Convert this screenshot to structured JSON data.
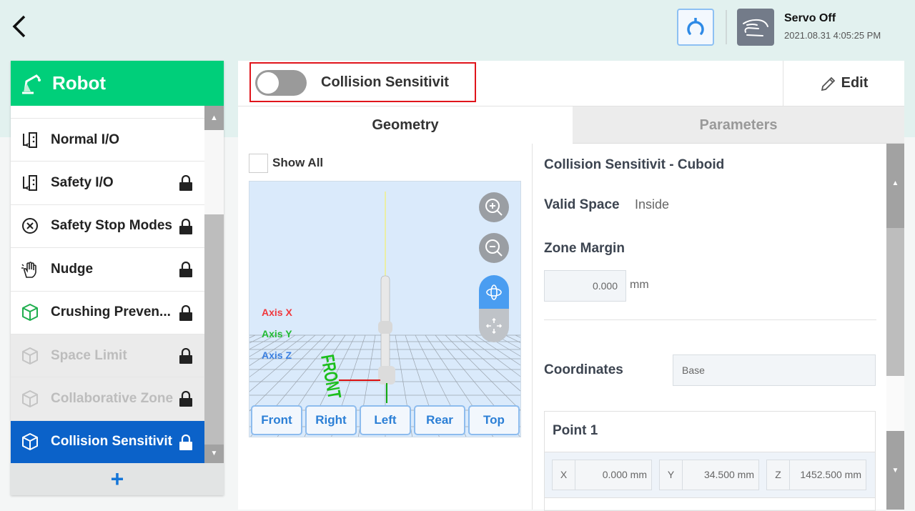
{
  "header": {
    "back_icon": "chevron-left-icon",
    "home_icon": "robot-home-icon",
    "servo_icon": "hand-icon",
    "servo_status": "Servo Off",
    "datetime": "2021.08.31 4:05:25 PM"
  },
  "sidebar": {
    "title": "Robot",
    "add_label": "+",
    "items": [
      {
        "label": "Normal I/O",
        "icon": "io-icon",
        "locked": false,
        "state": "normal"
      },
      {
        "label": "Safety I/O",
        "icon": "io-icon",
        "locked": true,
        "state": "normal"
      },
      {
        "label": "Safety Stop Modes",
        "icon": "stop-circle-icon",
        "locked": true,
        "state": "normal"
      },
      {
        "label": "Nudge",
        "icon": "hand-touch-icon",
        "locked": true,
        "state": "normal"
      },
      {
        "label": "Crushing Preven...",
        "icon": "cube-icon",
        "locked": true,
        "state": "normal"
      },
      {
        "label": "Space Limit",
        "icon": "cube-icon",
        "locked": true,
        "state": "disabled"
      },
      {
        "label": "Collaborative Zone",
        "icon": "cube-icon",
        "locked": true,
        "state": "disabled"
      },
      {
        "label": "Collision Sensitivit",
        "icon": "cube-icon",
        "locked": true,
        "state": "selected"
      }
    ]
  },
  "topbar": {
    "toggle_on": false,
    "title": "Collision Sensitivit",
    "edit_label": "Edit"
  },
  "tabs": [
    {
      "label": "Geometry",
      "active": true
    },
    {
      "label": "Parameters",
      "active": false
    }
  ],
  "geometry": {
    "show_all_label": "Show All",
    "show_all_checked": false,
    "axes": [
      {
        "label": "Axis X",
        "color": "#f0383d"
      },
      {
        "label": "Axis Y",
        "color": "#22bb33"
      },
      {
        "label": "Axis Z",
        "color": "#3a7fe0"
      }
    ],
    "floor_label": "FRONT",
    "view_buttons": [
      "Front",
      "Right",
      "Left",
      "Rear",
      "Top"
    ]
  },
  "details": {
    "title": "Collision Sensitivit - Cuboid",
    "valid_space_label": "Valid Space",
    "valid_space_value": "Inside",
    "zone_margin_label": "Zone Margin",
    "zone_margin_value": "0.000",
    "zone_margin_unit": "mm",
    "coordinates_label": "Coordinates",
    "coordinates_value": "Base",
    "point1": {
      "title": "Point 1",
      "x_label": "X",
      "x_value": "0.000",
      "y_label": "Y",
      "y_value": "34.500",
      "z_label": "Z",
      "z_value": "1452.500",
      "unit": "mm"
    }
  }
}
